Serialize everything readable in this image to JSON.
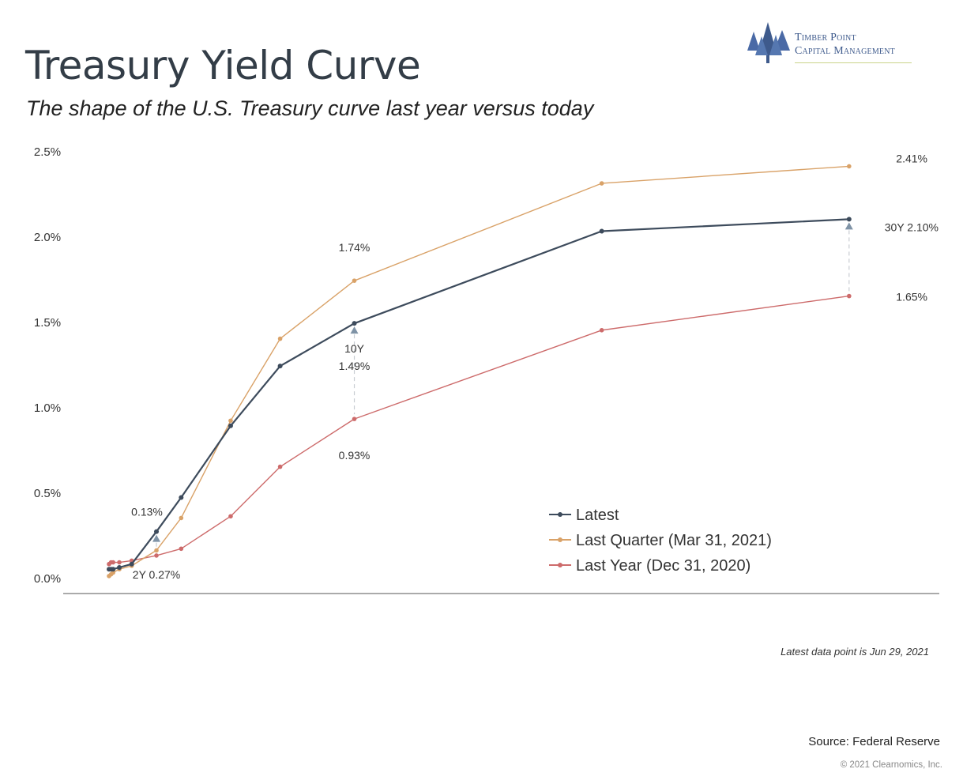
{
  "title": "Treasury Yield Curve",
  "subtitle": "The shape of the U.S. Treasury curve last year versus today",
  "logo": {
    "line1": "Timber Point",
    "line2": "Capital Management",
    "icon": "pine-trees-icon"
  },
  "note": "Latest data point is Jun 29, 2021",
  "source": "Source: Federal Reserve",
  "copyright": "© 2021 Clearnomics, Inc.",
  "chart_data": {
    "type": "line",
    "title": "",
    "xlabel": "",
    "ylabel": "",
    "x_unit": "months to maturity",
    "x": [
      1,
      2,
      3,
      6,
      12,
      24,
      36,
      60,
      84,
      120,
      240,
      360
    ],
    "ylim": [
      0,
      2.5
    ],
    "yticks": [
      "0.0%",
      "0.5%",
      "1.0%",
      "1.5%",
      "2.0%",
      "2.5%"
    ],
    "ytick_values": [
      0,
      0.5,
      1.0,
      1.5,
      2.0,
      2.5
    ],
    "grid": false,
    "legend_position": "lower-right",
    "series": [
      {
        "name": "Latest",
        "color": "#3d4b5c",
        "values": [
          0.05,
          0.05,
          0.05,
          0.06,
          0.08,
          0.27,
          0.47,
          0.89,
          1.24,
          1.49,
          2.03,
          2.1
        ]
      },
      {
        "name": "Last Quarter (Mar 31, 2021)",
        "color": "#d9a268",
        "values": [
          0.01,
          0.02,
          0.03,
          0.05,
          0.07,
          0.16,
          0.35,
          0.92,
          1.4,
          1.74,
          2.31,
          2.41
        ]
      },
      {
        "name": "Last Year (Dec 31, 2020)",
        "color": "#cd6b6b",
        "values": [
          0.08,
          0.09,
          0.09,
          0.09,
          0.1,
          0.13,
          0.17,
          0.36,
          0.65,
          0.93,
          1.45,
          1.65
        ]
      }
    ],
    "annotations": [
      {
        "text": "0.13%",
        "x": 24,
        "y": 0.13,
        "position": "above-left"
      },
      {
        "text": "2Y 0.27%",
        "x": 24,
        "y": 0.27,
        "position": "below"
      },
      {
        "text": "1.74%",
        "x": 120,
        "y": 1.74,
        "position": "above"
      },
      {
        "text": "10Y",
        "x": 120,
        "y": 1.49,
        "position": "below"
      },
      {
        "text": "1.49%",
        "x": 120,
        "y": 1.49,
        "position": "below-2"
      },
      {
        "text": "0.93%",
        "x": 120,
        "y": 0.93,
        "position": "below"
      },
      {
        "text": "2.41%",
        "x": 360,
        "y": 2.41,
        "position": "right"
      },
      {
        "text": "30Y 2.10%",
        "x": 360,
        "y": 2.1,
        "position": "right"
      },
      {
        "text": "1.65%",
        "x": 360,
        "y": 1.65,
        "position": "right"
      }
    ],
    "markers": [
      {
        "x": 24
      },
      {
        "x": 120
      },
      {
        "x": 360
      }
    ]
  }
}
